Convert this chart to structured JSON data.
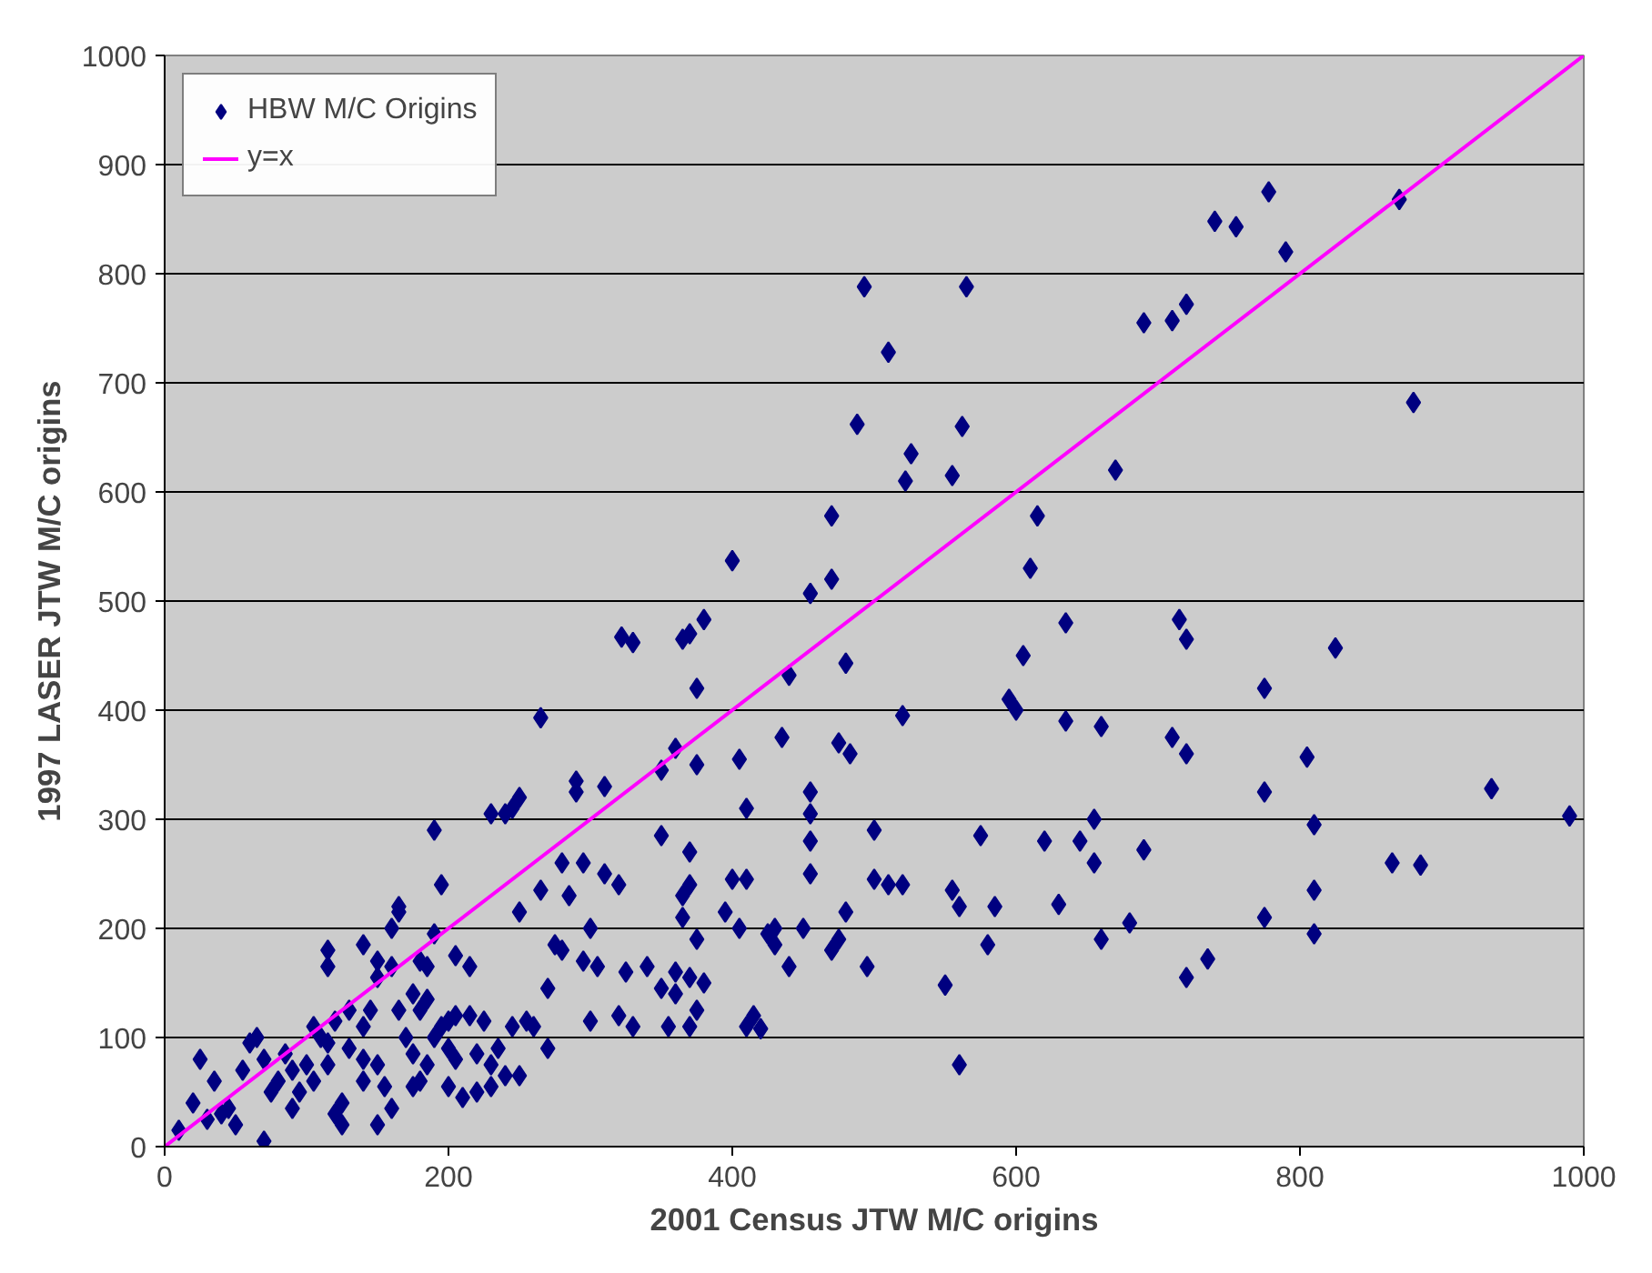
{
  "chart_data": {
    "type": "scatter",
    "xlabel": "2001 Census JTW M/C origins",
    "ylabel": "1997 LASER JTW M/C origins",
    "xlim": [
      0,
      1000
    ],
    "ylim": [
      0,
      1000
    ],
    "xticks": [
      0,
      200,
      400,
      600,
      800,
      1000
    ],
    "yticks": [
      0,
      100,
      200,
      300,
      400,
      500,
      600,
      700,
      800,
      900,
      1000
    ],
    "grid": "y",
    "legend": "top left",
    "series": [
      {
        "name": "HBW M/C Origins",
        "color": "#000080",
        "marker": "diamond",
        "x": [
          493,
          565,
          510,
          488,
          526,
          522,
          555,
          562,
          400,
          470,
          455,
          470,
          480,
          440,
          380,
          365,
          370,
          322,
          330,
          375,
          360,
          350,
          265,
          410,
          455,
          455,
          483,
          475,
          520,
          595,
          605,
          610,
          615,
          635,
          635,
          660,
          645,
          655,
          620,
          575,
          600,
          670,
          690,
          710,
          720,
          740,
          755,
          778,
          790,
          870,
          880,
          825,
          775,
          715,
          720,
          710,
          720,
          805,
          775,
          810,
          810,
          775,
          810,
          865,
          885,
          935,
          990,
          720,
          735,
          680,
          690,
          630,
          660,
          655,
          580,
          585,
          555,
          560,
          550,
          560,
          500,
          500,
          510,
          520,
          495,
          475,
          480,
          470,
          455,
          455,
          450,
          440,
          430,
          430,
          420,
          415,
          410,
          405,
          400,
          410,
          395,
          425,
          435,
          405,
          375,
          350,
          370,
          365,
          365,
          370,
          375,
          370,
          360,
          380,
          375,
          370,
          360,
          350,
          355,
          330,
          340,
          325,
          320,
          300,
          310,
          320,
          310,
          300,
          290,
          290,
          295,
          280,
          285,
          280,
          295,
          305,
          275,
          270,
          265,
          260,
          270,
          250,
          245,
          240,
          230,
          250,
          245,
          240,
          250,
          235,
          230,
          220,
          210,
          225,
          215,
          205,
          200,
          205,
          215,
          195,
          190,
          190,
          185,
          180,
          175,
          170,
          165,
          165,
          165,
          160,
          160,
          150,
          150,
          140,
          145,
          140,
          130,
          120,
          115,
          115,
          110,
          115,
          130,
          140,
          140,
          150,
          155,
          160,
          150,
          125,
          120,
          125,
          105,
          100,
          95,
          90,
          85,
          80,
          75,
          70,
          65,
          60,
          55,
          50,
          45,
          40,
          35,
          30,
          25,
          20,
          10,
          70,
          90,
          105,
          115,
          180,
          185,
          200,
          185,
          175,
          195,
          205,
          175,
          220,
          230,
          200,
          255,
          190,
          180
        ],
        "values": [
          788,
          788,
          728,
          662,
          635,
          610,
          615,
          660,
          537,
          578,
          507,
          520,
          443,
          432,
          483,
          465,
          470,
          467,
          462,
          420,
          365,
          345,
          393,
          310,
          325,
          305,
          360,
          370,
          395,
          410,
          450,
          530,
          578,
          480,
          390,
          385,
          280,
          300,
          280,
          285,
          400,
          620,
          755,
          757,
          772,
          848,
          843,
          875,
          820,
          868,
          682,
          457,
          420,
          483,
          465,
          375,
          360,
          357,
          325,
          295,
          235,
          210,
          195,
          260,
          258,
          328,
          303,
          155,
          172,
          205,
          272,
          222,
          190,
          260,
          185,
          220,
          235,
          220,
          148,
          75,
          290,
          245,
          240,
          240,
          165,
          190,
          215,
          180,
          250,
          280,
          200,
          165,
          185,
          200,
          108,
          120,
          110,
          200,
          245,
          245,
          215,
          195,
          375,
          355,
          350,
          285,
          270,
          210,
          230,
          240,
          190,
          155,
          160,
          150,
          125,
          110,
          140,
          145,
          110,
          110,
          165,
          160,
          120,
          115,
          330,
          240,
          250,
          200,
          335,
          325,
          260,
          260,
          230,
          180,
          170,
          165,
          185,
          145,
          235,
          110,
          90,
          320,
          310,
          305,
          305,
          215,
          110,
          65,
          65,
          90,
          55,
          50,
          45,
          115,
          120,
          80,
          115,
          175,
          165,
          240,
          290,
          195,
          165,
          125,
          140,
          100,
          125,
          215,
          220,
          200,
          165,
          170,
          155,
          185,
          125,
          110,
          125,
          115,
          180,
          165,
          100,
          75,
          90,
          80,
          60,
          75,
          55,
          35,
          20,
          40,
          30,
          20,
          60,
          75,
          50,
          70,
          85,
          60,
          50,
          80,
          100,
          95,
          70,
          20,
          35,
          30,
          60,
          25,
          80,
          40,
          15,
          5,
          35,
          110,
          95,
          60,
          75,
          90,
          135,
          85,
          110,
          120,
          55,
          85,
          75,
          55,
          115,
          100,
          170
        ]
      },
      {
        "name": "y=x",
        "color": "#ff00ff",
        "type": "line",
        "x": [
          0,
          1000
        ],
        "values": [
          0,
          1000
        ]
      }
    ]
  }
}
